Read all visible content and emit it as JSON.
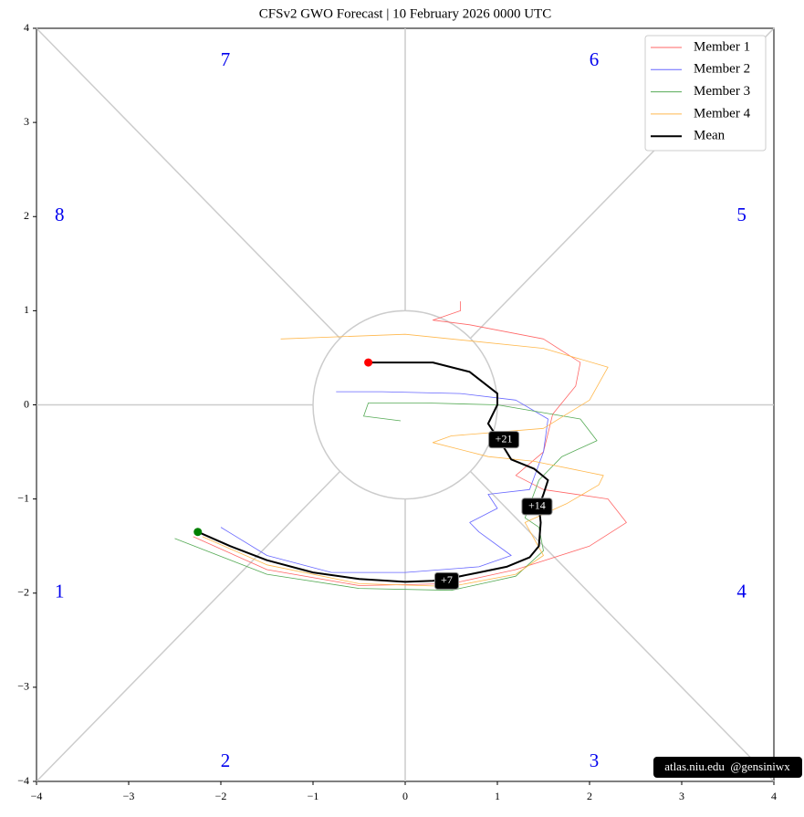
{
  "chart_data": {
    "type": "phase",
    "title": "CFSv2 GWO Forecast  |  10  February  2026 0000 UTC",
    "xlim": [
      -4,
      4
    ],
    "ylim": [
      -4,
      4
    ],
    "xticks": [
      {
        "value": -4,
        "label": "−4"
      },
      {
        "value": -3,
        "label": "−3"
      },
      {
        "value": -2,
        "label": "−2"
      },
      {
        "value": -1,
        "label": "−1"
      },
      0,
      1,
      2,
      3,
      4
    ],
    "yticks": [
      {
        "value": -4,
        "label": "−4"
      },
      {
        "value": -3,
        "label": "−3"
      },
      {
        "value": -2,
        "label": "−2"
      },
      {
        "value": -1,
        "label": "−1"
      },
      0,
      1,
      2,
      3,
      4
    ],
    "phase_labels": [
      "1",
      "2",
      "3",
      "4",
      "5",
      "6",
      "7",
      "8"
    ],
    "series": [
      {
        "name": "Member 1",
        "color": "#ff6666",
        "x": [
          -2.3,
          -1.5,
          -0.5,
          0.5,
          1.2,
          2.0,
          2.4,
          2.2,
          1.5,
          1.2,
          1.5,
          1.6,
          1.85,
          1.9,
          1.5,
          0.7,
          0.3,
          0.6,
          0.6
        ],
        "values": [
          -1.4,
          -1.75,
          -1.92,
          -1.9,
          -1.75,
          -1.5,
          -1.25,
          -1.0,
          -0.9,
          -0.75,
          -0.5,
          -0.1,
          0.2,
          0.45,
          0.7,
          0.85,
          0.9,
          1.0,
          1.1
        ]
      },
      {
        "name": "Member 2",
        "color": "#6666ff",
        "x": [
          -2.0,
          -1.5,
          -0.8,
          0,
          0.8,
          1.15,
          0.8,
          0.7,
          1.0,
          0.9,
          1.35,
          1.5,
          1.55,
          1.2,
          0.6,
          -0.25,
          -0.75
        ],
        "values": [
          -1.3,
          -1.6,
          -1.78,
          -1.78,
          -1.72,
          -1.6,
          -1.35,
          -1.25,
          -1.1,
          -0.95,
          -0.9,
          -0.5,
          -0.15,
          0.05,
          0.12,
          0.14,
          0.14
        ]
      },
      {
        "name": "Member 3",
        "color": "#55aa55",
        "x": [
          -2.5,
          -1.5,
          -0.5,
          0.5,
          1.2,
          1.5,
          1.45,
          1.3,
          1.45,
          1.7,
          2.08,
          1.9,
          1.0,
          0.2,
          -0.4,
          -0.45,
          -0.05
        ],
        "values": [
          -1.42,
          -1.8,
          -1.95,
          -1.97,
          -1.82,
          -1.55,
          -1.3,
          -1.2,
          -0.8,
          -0.55,
          -0.38,
          -0.15,
          0.0,
          0.02,
          0.02,
          -0.12,
          -0.17
        ]
      },
      {
        "name": "Member 4",
        "color": "#ffb84d",
        "x": [
          -2.2,
          -1.5,
          -0.5,
          0.5,
          1.2,
          1.5,
          1.3,
          1.75,
          2.1,
          2.15,
          1.4,
          0.9,
          0.3,
          0.5,
          1.5,
          2.0,
          2.2,
          1.5,
          0,
          -1.35
        ],
        "values": [
          -1.4,
          -1.7,
          -1.9,
          -1.93,
          -1.8,
          -1.6,
          -1.25,
          -1.05,
          -0.85,
          -0.75,
          -0.6,
          -0.55,
          -0.4,
          -0.33,
          -0.25,
          0.05,
          0.4,
          0.6,
          0.75,
          0.7
        ]
      },
      {
        "name": "Mean",
        "color": "#000000",
        "x": [
          -2.25,
          -1.9,
          -1.5,
          -1.0,
          -0.5,
          0,
          0.3,
          0.45,
          0.8,
          1.1,
          1.35,
          1.45,
          1.47,
          1.45,
          1.5,
          1.55,
          1.4,
          1.15,
          1.05,
          0.9,
          1.0,
          1.0,
          0.7,
          0.3,
          -0.4
        ],
        "values": [
          -1.35,
          -1.5,
          -1.65,
          -1.78,
          -1.85,
          -1.88,
          -1.87,
          -1.85,
          -1.78,
          -1.72,
          -1.62,
          -1.5,
          -1.25,
          -1.08,
          -0.95,
          -0.8,
          -0.68,
          -0.58,
          -0.42,
          -0.2,
          0.0,
          0.12,
          0.35,
          0.45,
          0.45
        ]
      }
    ],
    "start_marker_color": "green",
    "end_marker_color": "red",
    "annotations": [
      {
        "text": "+7",
        "x": 0.45,
        "y": -1.87
      },
      {
        "text": "+14",
        "x": 1.43,
        "y": -1.08
      },
      {
        "text": "+21",
        "x": 1.07,
        "y": -0.37
      }
    ],
    "watermark": "atlas.niu.edu  @gensiniwx"
  }
}
